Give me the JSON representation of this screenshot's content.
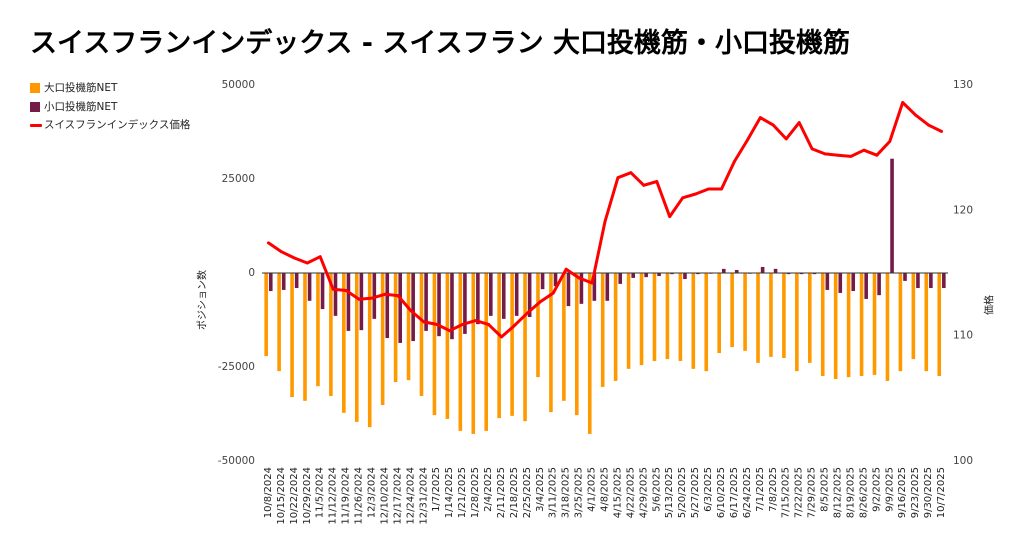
{
  "chart_data": {
    "type": "bar",
    "title": "スイスフランインデックス - スイスフラン 大口投機筋・小口投機筋",
    "ylabel": "ポジション数",
    "y2label": "価格",
    "ylim": [
      -50000,
      50000
    ],
    "y2lim": [
      100,
      130
    ],
    "yticks": [
      50000,
      25000,
      0,
      -25000,
      -50000
    ],
    "y2ticks": [
      130,
      120,
      110,
      100
    ],
    "grid": false,
    "legend": "left",
    "categories": [
      "10/8/2024",
      "10/15/2024",
      "10/22/2024",
      "10/29/2024",
      "11/5/2024",
      "11/12/2024",
      "11/19/2024",
      "11/26/2024",
      "12/3/2024",
      "12/10/2024",
      "12/17/2024",
      "12/24/2024",
      "12/31/2024",
      "1/7/2025",
      "1/14/2025",
      "1/21/2025",
      "1/28/2025",
      "2/4/2025",
      "2/11/2025",
      "2/18/2025",
      "2/25/2025",
      "3/4/2025",
      "3/11/2025",
      "3/18/2025",
      "3/25/2025",
      "4/1/2025",
      "4/8/2025",
      "4/15/2025",
      "4/22/2025",
      "4/29/2025",
      "5/6/2025",
      "5/13/2025",
      "5/20/2025",
      "5/27/2025",
      "6/3/2025",
      "6/10/2025",
      "6/17/2025",
      "6/24/2025",
      "7/1/2025",
      "7/8/2025",
      "7/15/2025",
      "7/22/2025",
      "7/29/2025",
      "8/5/2025",
      "8/12/2025",
      "8/19/2025",
      "8/26/2025",
      "9/2/2025",
      "9/9/2025",
      "9/16/2025",
      "9/23/2025",
      "9/30/2025",
      "10/7/2025"
    ],
    "series": [
      {
        "name": "大口投機筋NET",
        "type": "bar",
        "secondary_axis": false,
        "color": "#ff9900",
        "values": [
          -22100,
          -26100,
          -33000,
          -34000,
          -30100,
          -32700,
          -37200,
          -39600,
          -41000,
          -35100,
          -29000,
          -28500,
          -32700,
          -37800,
          -38800,
          -42000,
          -42800,
          -42000,
          -38600,
          -38000,
          -39400,
          -27700,
          -37000,
          -34000,
          -37800,
          -42800,
          -30300,
          -28700,
          -25500,
          -24500,
          -23400,
          -22900,
          -23400,
          -25500,
          -26100,
          -21300,
          -19700,
          -20700,
          -23900,
          -22300,
          -22600,
          -26100,
          -23900,
          -27400,
          -28200,
          -27700,
          -27400,
          -27100,
          -28700,
          -26100,
          -22900,
          -26100,
          -27400
        ]
      },
      {
        "name": "小口投機筋NET",
        "type": "bar",
        "secondary_axis": false,
        "color": "#741b47",
        "values": [
          -4800,
          -4500,
          -4000,
          -7400,
          -9600,
          -11400,
          -15400,
          -15200,
          -12200,
          -17300,
          -18600,
          -18100,
          -15400,
          -16800,
          -17600,
          -16200,
          -13600,
          -11400,
          -12200,
          -11400,
          -11700,
          -4300,
          -3500,
          -8800,
          -8200,
          -7400,
          -7400,
          -2900,
          -1300,
          -1100,
          -800,
          -300,
          -1600,
          -300,
          -200,
          1100,
          800,
          -200,
          1600,
          1100,
          -300,
          -300,
          -300,
          -4500,
          -5300,
          -4800,
          -6900,
          -5900,
          30400,
          -2100,
          -4000,
          -4000,
          -4000
        ]
      },
      {
        "name": "スイスフランインデックス価格",
        "type": "line",
        "secondary_axis": true,
        "color": "#ff0000",
        "values": [
          117.4,
          116.7,
          116.2,
          115.8,
          116.3,
          113.7,
          113.6,
          112.9,
          113.0,
          113.3,
          113.2,
          112.0,
          111.1,
          110.9,
          110.4,
          110.9,
          111.2,
          110.9,
          109.9,
          110.8,
          111.8,
          112.7,
          113.4,
          115.3,
          114.6,
          114.2,
          119.1,
          122.6,
          123.0,
          122.0,
          122.3,
          119.5,
          121.0,
          121.3,
          121.7,
          121.7,
          123.9,
          125.6,
          127.4,
          126.8,
          125.7,
          127.0,
          124.9,
          124.5,
          124.4,
          124.3,
          124.8,
          124.4,
          125.5,
          128.6,
          127.6,
          126.8,
          126.3
        ]
      }
    ]
  }
}
